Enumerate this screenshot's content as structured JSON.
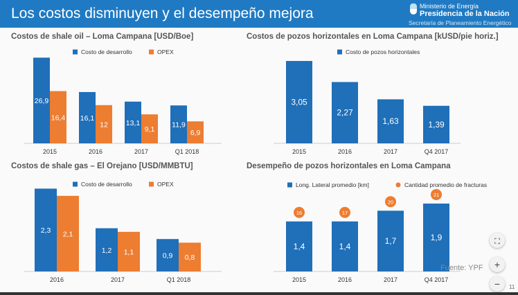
{
  "header": {
    "title": "Los costos disminuyen y el desempeño mejora",
    "logo": {
      "line1": "Ministerio de Energía",
      "line2": "Presidencia de la Nación",
      "line3": "Secretaría de Planeamiento Energético"
    }
  },
  "colors": {
    "blue": "#1f6fb9",
    "orange": "#ed7d31",
    "header": "#1f7ac3"
  },
  "footer": {
    "source": "Fuente: YPF",
    "page": "11"
  },
  "controls": {
    "fit": "⛶",
    "zoom_in": "+",
    "zoom_out": "−"
  },
  "chart_data": [
    {
      "type": "bar",
      "title": "Costos de shale oil – Loma Campana [USD/Boe]",
      "categories": [
        "2015",
        "2016",
        "2017",
        "Q1 2018"
      ],
      "series": [
        {
          "name": "Costo de desarrollo",
          "color": "#1f6fb9",
          "values": [
            26.9,
            16.1,
            13.1,
            11.9
          ],
          "labels": [
            "26,9",
            "16,1",
            "13,1",
            "11,9"
          ]
        },
        {
          "name": "OPEX",
          "color": "#ed7d31",
          "values": [
            16.4,
            12,
            9.1,
            6.9
          ],
          "labels": [
            "16,4",
            "12",
            "9,1",
            "6,9"
          ]
        }
      ]
    },
    {
      "type": "bar",
      "title": "Costos de pozos horizontales en Loma Campana [kUSD/pie horiz.]",
      "categories": [
        "2015",
        "2016",
        "2017",
        "Q4 2017"
      ],
      "series": [
        {
          "name": "Costo de pozos horizontales",
          "color": "#1f6fb9",
          "values": [
            3.05,
            2.27,
            1.63,
            1.39
          ],
          "labels": [
            "3,05",
            "2,27",
            "1,63",
            "1,39"
          ]
        }
      ]
    },
    {
      "type": "bar",
      "title": "Costos de shale gas – El Orejano [USD/MMBTU]",
      "categories": [
        "2016",
        "2017",
        "Q1 2018"
      ],
      "series": [
        {
          "name": "Costo de desarrollo",
          "color": "#1f6fb9",
          "values": [
            2.3,
            1.2,
            0.9
          ],
          "labels": [
            "2,3",
            "1,2",
            "0,9"
          ]
        },
        {
          "name": "OPEX",
          "color": "#ed7d31",
          "values": [
            2.1,
            1.1,
            0.8
          ],
          "labels": [
            "2,1",
            "1,1",
            "0,8"
          ]
        }
      ]
    },
    {
      "type": "bar",
      "title": "Desempeño de pozos horizontales en Loma Campana",
      "categories": [
        "2015",
        "2016",
        "2017",
        "Q4 2017"
      ],
      "series": [
        {
          "name": "Long. Lateral promedio [km]",
          "color": "#1f6fb9",
          "values": [
            1.4,
            1.4,
            1.7,
            1.9
          ],
          "labels": [
            "1,4",
            "1,4",
            "1,7",
            "1,9"
          ]
        },
        {
          "name": "Cantidad promedio de fracturas",
          "color": "#ed7d31",
          "marker": "circle",
          "values": [
            16,
            17,
            20,
            21
          ],
          "labels": [
            "16",
            "17",
            "20",
            "21"
          ]
        }
      ]
    }
  ]
}
